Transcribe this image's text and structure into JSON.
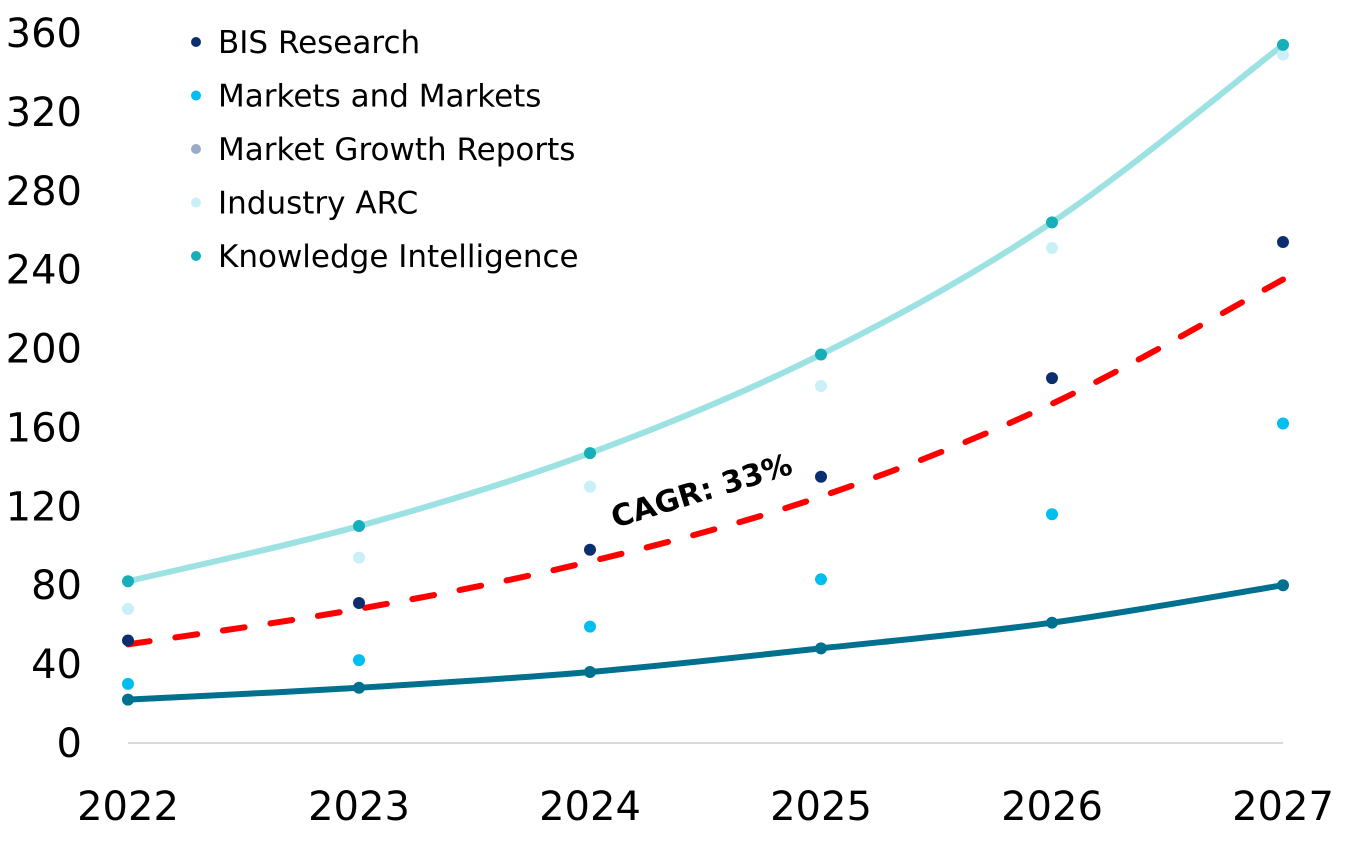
{
  "chart_data": {
    "type": "scatter",
    "title": "",
    "xlabel": "",
    "ylabel": "",
    "categories": [
      "2022",
      "2023",
      "2024",
      "2025",
      "2026",
      "2027"
    ],
    "ylim": [
      0,
      360
    ],
    "yticks": [
      0,
      40,
      80,
      120,
      160,
      200,
      240,
      280,
      320,
      360
    ],
    "grid": false,
    "legend_position": "top-left",
    "series": [
      {
        "name": "BIS Research",
        "color": "#0b2f6e",
        "kind": "points",
        "values": [
          52,
          71,
          98,
          135,
          185,
          254
        ]
      },
      {
        "name": "Markets and Markets",
        "color": "#00bff0",
        "kind": "points",
        "values": [
          30,
          42,
          59,
          83,
          116,
          162
        ]
      },
      {
        "name": "Market Growth Reports",
        "color": "#9aabc8",
        "kind": "points",
        "values": []
      },
      {
        "name": "Industry ARC",
        "color": "#c9eff8",
        "kind": "points",
        "values": [
          68,
          94,
          130,
          181,
          251,
          349
        ]
      },
      {
        "name": "Knowledge Intelligence",
        "color": "#16aeb8",
        "kind": "points",
        "values": [
          82,
          110,
          147,
          197,
          264,
          354
        ]
      }
    ],
    "lines": [
      {
        "name": "upper-curve",
        "color": "#9ce2e2",
        "values": [
          82,
          110,
          147,
          197,
          264,
          354
        ]
      },
      {
        "name": "lower-curve",
        "color": "#00708f",
        "values": [
          22,
          28,
          36,
          48,
          61,
          80
        ],
        "markers": true
      },
      {
        "name": "cagr-trend",
        "color": "#ff0000",
        "dashed": true,
        "values": [
          50,
          68,
          92,
          125,
          172,
          235
        ]
      }
    ],
    "annotations": [
      {
        "text": "CAGR: 33%",
        "anchor_x": "2024.6",
        "anchor_y": 120
      }
    ]
  }
}
